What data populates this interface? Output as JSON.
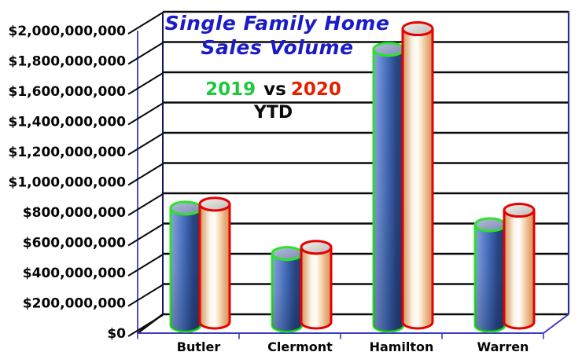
{
  "app": {
    "background": "#ffffff"
  },
  "title": {
    "line1": "Single Family Home",
    "line2": "Sales Volume",
    "color": "#1b1bc8"
  },
  "legend": {
    "year1": "2019",
    "vs": "vs",
    "year2": "2020",
    "period": "YTD",
    "year1_color": "#1ec83e",
    "year2_color": "#e42000",
    "text_color": "#0a0a0a"
  },
  "colors": {
    "series_2019_outline": "#2be32b",
    "series_2019_body": [
      "#8fa6da",
      "#6488d0",
      "#3f68b6",
      "#2a4886",
      "#223c72"
    ],
    "series_2019_top": [
      "#b4c0da",
      "#7c8ab2"
    ],
    "series_2020_outline": "#e60000",
    "series_2020_body": [
      "#cd9765",
      "#e7c29a",
      "#fcf4e9",
      "#fffdf9",
      "#f7d8b4",
      "#e8ae7e",
      "#d2935e"
    ],
    "series_2020_top": [
      "#f2f1ef",
      "#bcbab7"
    ],
    "gridline": "#0a0a0a",
    "axis_line": "#3c3cbe",
    "wall_right_edge": "#2e2e8e",
    "wall_left_edge": "#15155c",
    "label_text": "#050505"
  },
  "chart_data": {
    "type": "bar",
    "subtype": "3d-cylinder",
    "title": "Single Family Home Sales Volume",
    "legend_text": "2019 vs 2020 YTD",
    "legend_position": "top-center-inside",
    "grid": true,
    "categories": [
      "Butler",
      "Clermont",
      "Hamilton",
      "Warren"
    ],
    "series": [
      {
        "name": "2019",
        "values": [
          775000000,
          475000000,
          1825000000,
          665000000
        ]
      },
      {
        "name": "2020",
        "values": [
          780000000,
          495000000,
          1940000000,
          740000000
        ]
      }
    ],
    "xlabel": "",
    "ylabel": "",
    "ylim": [
      0,
      2000000000
    ],
    "ytick_step": 200000000,
    "ytick_labels": [
      "$2,000,000,000",
      "$1,800,000,000",
      "$1,600,000,000",
      "$1,400,000,000",
      "$1,200,000,000",
      "$1,000,000,000",
      "$800,000,000",
      "$600,000,000",
      "$400,000,000",
      "$200,000,000",
      "$0"
    ]
  }
}
